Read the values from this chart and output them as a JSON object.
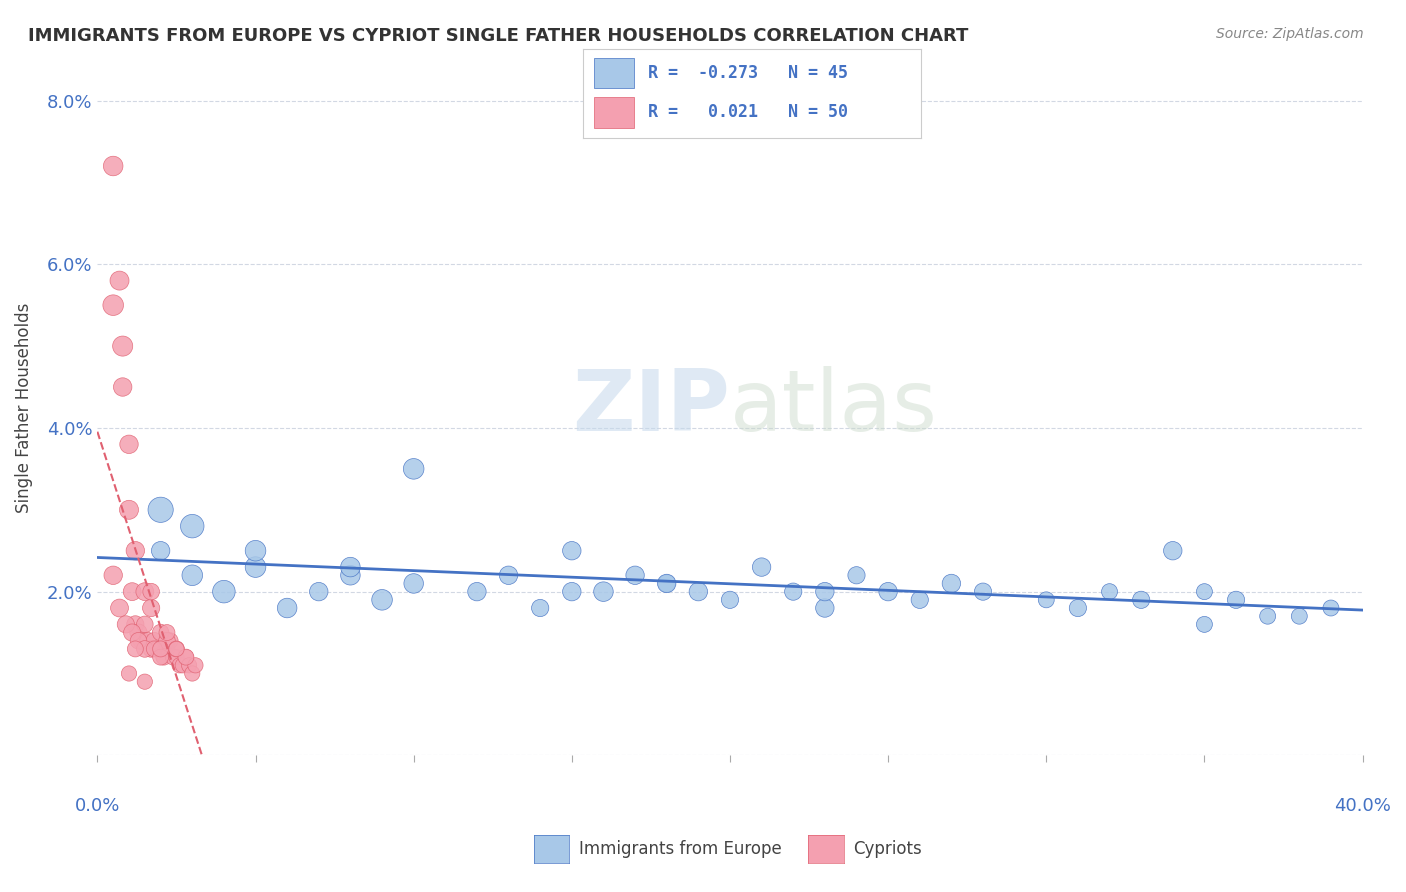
{
  "title": "IMMIGRANTS FROM EUROPE VS CYPRIOT SINGLE FATHER HOUSEHOLDS CORRELATION CHART",
  "source": "Source: ZipAtlas.com",
  "ylabel": "Single Father Households",
  "legend_label_blue": "Immigrants from Europe",
  "legend_label_pink": "Cypriots",
  "yticks": [
    0.0,
    0.02,
    0.04,
    0.06,
    0.08
  ],
  "ytick_labels": [
    "",
    "2.0%",
    "4.0%",
    "6.0%",
    "8.0%"
  ],
  "xlim": [
    0.0,
    0.4
  ],
  "ylim": [
    0.0,
    0.085
  ],
  "blue_R": -0.273,
  "blue_N": 45,
  "pink_R": 0.021,
  "pink_N": 50,
  "blue_color": "#a8c8e8",
  "pink_color": "#f4a0b0",
  "blue_line_color": "#4472c4",
  "pink_line_color": "#e06070",
  "watermark_zip": "ZIP",
  "watermark_atlas": "atlas",
  "blue_scatter_x": [
    0.02,
    0.03,
    0.04,
    0.05,
    0.06,
    0.07,
    0.08,
    0.09,
    0.1,
    0.12,
    0.14,
    0.15,
    0.16,
    0.17,
    0.18,
    0.19,
    0.2,
    0.21,
    0.22,
    0.23,
    0.24,
    0.25,
    0.26,
    0.27,
    0.28,
    0.3,
    0.31,
    0.32,
    0.33,
    0.34,
    0.35,
    0.36,
    0.37,
    0.02,
    0.03,
    0.05,
    0.08,
    0.1,
    0.13,
    0.15,
    0.18,
    0.23,
    0.35,
    0.38,
    0.39
  ],
  "blue_scatter_y": [
    0.025,
    0.022,
    0.02,
    0.023,
    0.018,
    0.02,
    0.022,
    0.019,
    0.021,
    0.02,
    0.018,
    0.025,
    0.02,
    0.022,
    0.021,
    0.02,
    0.019,
    0.023,
    0.02,
    0.018,
    0.022,
    0.02,
    0.019,
    0.021,
    0.02,
    0.019,
    0.018,
    0.02,
    0.019,
    0.025,
    0.02,
    0.019,
    0.017,
    0.03,
    0.028,
    0.025,
    0.023,
    0.035,
    0.022,
    0.02,
    0.021,
    0.02,
    0.016,
    0.017,
    0.018
  ],
  "blue_scatter_sizes": [
    80,
    100,
    120,
    100,
    90,
    80,
    90,
    100,
    90,
    80,
    70,
    80,
    90,
    80,
    70,
    80,
    70,
    80,
    70,
    80,
    70,
    80,
    70,
    80,
    70,
    60,
    70,
    60,
    70,
    80,
    60,
    70,
    60,
    150,
    130,
    100,
    90,
    100,
    80,
    80,
    80,
    80,
    60,
    60,
    60
  ],
  "pink_scatter_x": [
    0.005,
    0.007,
    0.008,
    0.01,
    0.011,
    0.012,
    0.013,
    0.014,
    0.015,
    0.016,
    0.017,
    0.018,
    0.019,
    0.02,
    0.021,
    0.022,
    0.023,
    0.024,
    0.025,
    0.026,
    0.027,
    0.028,
    0.029,
    0.03,
    0.031,
    0.005,
    0.008,
    0.01,
    0.012,
    0.015,
    0.017,
    0.02,
    0.022,
    0.025,
    0.028,
    0.005,
    0.007,
    0.009,
    0.011,
    0.013,
    0.015,
    0.018,
    0.02,
    0.012,
    0.017,
    0.022,
    0.025,
    0.01,
    0.015,
    0.02
  ],
  "pink_scatter_y": [
    0.072,
    0.058,
    0.045,
    0.038,
    0.02,
    0.016,
    0.015,
    0.014,
    0.016,
    0.014,
    0.013,
    0.014,
    0.013,
    0.013,
    0.012,
    0.013,
    0.014,
    0.012,
    0.012,
    0.011,
    0.011,
    0.012,
    0.011,
    0.01,
    0.011,
    0.055,
    0.05,
    0.03,
    0.025,
    0.02,
    0.018,
    0.015,
    0.014,
    0.013,
    0.012,
    0.022,
    0.018,
    0.016,
    0.015,
    0.014,
    0.013,
    0.013,
    0.012,
    0.013,
    0.02,
    0.015,
    0.013,
    0.01,
    0.009,
    0.013
  ],
  "pink_scatter_sizes": [
    90,
    85,
    80,
    80,
    75,
    70,
    70,
    70,
    65,
    65,
    65,
    65,
    60,
    60,
    60,
    60,
    60,
    60,
    55,
    55,
    55,
    55,
    55,
    55,
    55,
    100,
    95,
    85,
    80,
    75,
    70,
    65,
    65,
    60,
    60,
    80,
    75,
    70,
    70,
    65,
    65,
    60,
    60,
    60,
    65,
    60,
    55,
    55,
    55,
    60
  ]
}
